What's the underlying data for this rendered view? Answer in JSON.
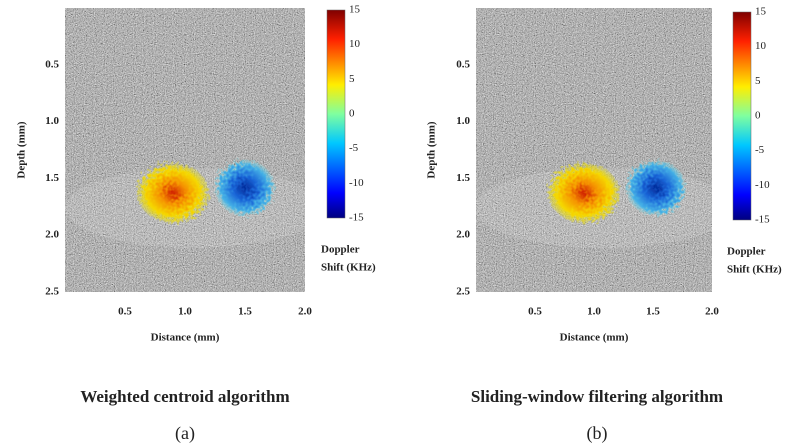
{
  "chart_data": [
    {
      "type": "image",
      "caption": "Weighted centroid algorithm",
      "label": "(a)",
      "x_label": "Distance (mm)",
      "y_label": "Depth (mm)",
      "xlim": [
        0,
        2.0
      ],
      "ylim": [
        0,
        2.5
      ],
      "y_inverted": true,
      "xticks": [
        0.5,
        {
          "value": 1,
          "label": "1.0"
        },
        1.5,
        {
          "value": 2,
          "label": "2.0"
        }
      ],
      "yticks": [
        0.5,
        {
          "value": 1,
          "label": "1.0"
        },
        1.5,
        {
          "value": 2,
          "label": "2.0"
        },
        2.5
      ],
      "colorbar_label": [
        "Doppler",
        "Shift (KHz)"
      ],
      "clim": [
        -15,
        15
      ],
      "cticks": [
        15,
        10,
        5,
        0,
        -5,
        -10,
        -15
      ],
      "colormap": "jet"
    },
    {
      "type": "image",
      "caption": "Sliding-window filtering algorithm",
      "label": "(b)",
      "x_label": "Distance (mm)",
      "y_label": "Depth (mm)",
      "xlim": [
        0,
        2.0
      ],
      "ylim": [
        0,
        2.5
      ],
      "y_inverted": true,
      "xticks": [
        0.5,
        {
          "value": 1,
          "label": "1.0"
        },
        1.5,
        {
          "value": 2,
          "label": "2.0"
        }
      ],
      "yticks": [
        0.5,
        {
          "value": 1,
          "label": "1.0"
        },
        1.5,
        {
          "value": 2,
          "label": "2.0"
        },
        2.5
      ],
      "colorbar_label": [
        "Doppler",
        "Shift (KHz)"
      ],
      "clim": [
        -15,
        15
      ],
      "cticks": [
        15,
        10,
        5,
        0,
        -5,
        -10,
        -15
      ],
      "colormap": "jet"
    }
  ]
}
